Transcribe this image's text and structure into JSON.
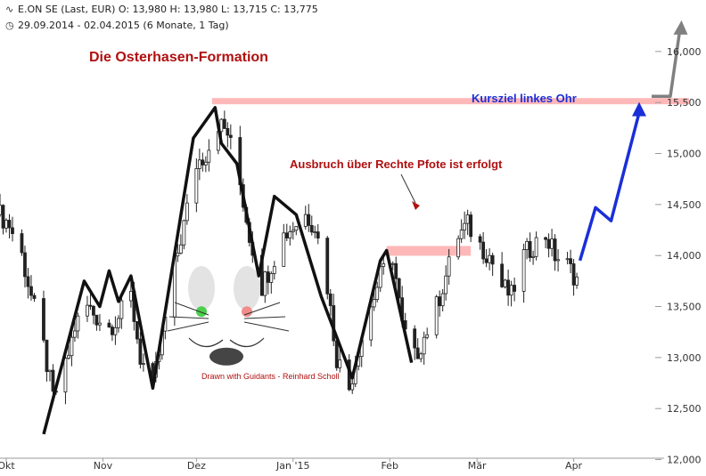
{
  "header": {
    "line1_icon": "chart-icon",
    "line1": "E.ON SE (Last, EUR)  O: 13,980  H: 13,980  L: 13,715  C: 13,775",
    "line2_icon": "clock-icon",
    "line2": "29.09.2014 - 02.04.2015 (6 Monate, 1 Tag)"
  },
  "annotations": {
    "title": "Die Osterhasen-Formation",
    "breakout": "Ausbruch über Rechte Pfote ist erfolgt",
    "target": "Kursziel linkes Ohr",
    "credit": "Drawn with Guidants - Reinhard Scholl"
  },
  "colors": {
    "title": "#b01010",
    "breakout": "#b01010",
    "target": "#1a2fd8",
    "credit": "#b01010",
    "resistance_band": "#ffb8b8",
    "pattern_line": "#111111",
    "projection": "#1a2fd8",
    "ear_projection": "#808080",
    "eye_left": "#4ccf4c",
    "eye_right": "#f08c8c",
    "candles": "#222222"
  },
  "chart_data": {
    "type": "candlestick",
    "instrument": "E.ON SE",
    "currency": "EUR",
    "ylim": [
      11900,
      16400
    ],
    "yticks": [
      12000,
      12500,
      13000,
      13500,
      14000,
      14500,
      15000,
      15500,
      16000
    ],
    "ytick_labels": [
      "12,000",
      "12,500",
      "13,000",
      "13,500",
      "14,000",
      "14,500",
      "15,000",
      "15,500",
      "16,000"
    ],
    "x_start": "2014-09-29",
    "x_end_axis": "2015-04-30",
    "xticks": [
      "2014-10-01",
      "2014-11-01",
      "2014-12-01",
      "2015-01-01",
      "2015-02-01",
      "2015-03-01",
      "2015-04-01"
    ],
    "xtick_labels": [
      "Okt",
      "Nov",
      "Dez",
      "Jan '15",
      "Feb",
      "Mär",
      "Apr"
    ],
    "last_ohlc": {
      "open": 13980,
      "high": 13980,
      "low": 13715,
      "close": 13775
    },
    "close_series": {
      "dates": [
        "2014-09-29",
        "2014-10-02",
        "2014-10-06",
        "2014-10-09",
        "2014-10-13",
        "2014-10-16",
        "2014-10-20",
        "2014-10-23",
        "2014-10-27",
        "2014-10-30",
        "2014-11-03",
        "2014-11-06",
        "2014-11-10",
        "2014-11-13",
        "2014-11-17",
        "2014-11-20",
        "2014-11-24",
        "2014-11-27",
        "2014-12-01",
        "2014-12-04",
        "2014-12-08",
        "2014-12-11",
        "2014-12-15",
        "2014-12-18",
        "2014-12-22",
        "2014-12-29",
        "2015-01-05",
        "2015-01-08",
        "2015-01-12",
        "2015-01-15",
        "2015-01-19",
        "2015-01-22",
        "2015-01-26",
        "2015-01-29",
        "2015-02-02",
        "2015-02-05",
        "2015-02-09",
        "2015-02-12",
        "2015-02-16",
        "2015-02-19",
        "2015-02-23",
        "2015-02-26",
        "2015-03-02",
        "2015-03-05",
        "2015-03-09",
        "2015-03-12",
        "2015-03-16",
        "2015-03-19",
        "2015-03-23",
        "2015-03-26",
        "2015-03-30",
        "2015-04-02"
      ],
      "values": [
        14400,
        14300,
        14000,
        13600,
        13100,
        12600,
        12900,
        13300,
        13500,
        13400,
        13300,
        13400,
        13600,
        13000,
        12700,
        13200,
        13900,
        14300,
        14900,
        15000,
        15300,
        15200,
        14700,
        14200,
        13700,
        14200,
        14400,
        14300,
        13700,
        13000,
        12700,
        13100,
        13500,
        13800,
        14000,
        13300,
        13000,
        13200,
        13500,
        13800,
        14200,
        14300,
        14100,
        14000,
        13700,
        13600,
        14000,
        14100,
        14200,
        14000,
        13900,
        13775
      ]
    },
    "pattern_path": {
      "dates": [
        "2014-10-13",
        "2014-10-26",
        "2014-10-31",
        "2014-11-03",
        "2014-11-06",
        "2014-11-10",
        "2014-11-17",
        "2014-11-30",
        "2014-12-07",
        "2014-12-09",
        "2014-12-14",
        "2014-12-21",
        "2014-12-26",
        "2015-01-02",
        "2015-01-10",
        "2015-01-20",
        "2015-01-29",
        "2015-01-31",
        "2015-02-08"
      ],
      "values": [
        12250,
        13750,
        13500,
        13850,
        13550,
        13800,
        12700,
        15150,
        15450,
        15100,
        14900,
        13800,
        14580,
        14400,
        13600,
        12800,
        13950,
        14050,
        12950
      ]
    },
    "projection_path": {
      "dates": [
        "2015-04-03",
        "2015-04-08",
        "2015-04-13",
        "2015-04-22"
      ],
      "values": [
        13950,
        14470,
        14340,
        15400
      ]
    },
    "ear_projection_path": {
      "dates": [
        "2015-04-26",
        "2015-05-02",
        "2015-05-05"
      ],
      "values": [
        15560,
        15560,
        16200
      ]
    },
    "resistance_zones": [
      {
        "start": "2014-12-06",
        "end": "2015-05-08",
        "value": 15500
      },
      {
        "start": "2015-01-31",
        "end": "2015-02-27",
        "value": 14050
      }
    ],
    "eye_values": [
      13450,
      13450
    ],
    "nose_value": 13010
  }
}
